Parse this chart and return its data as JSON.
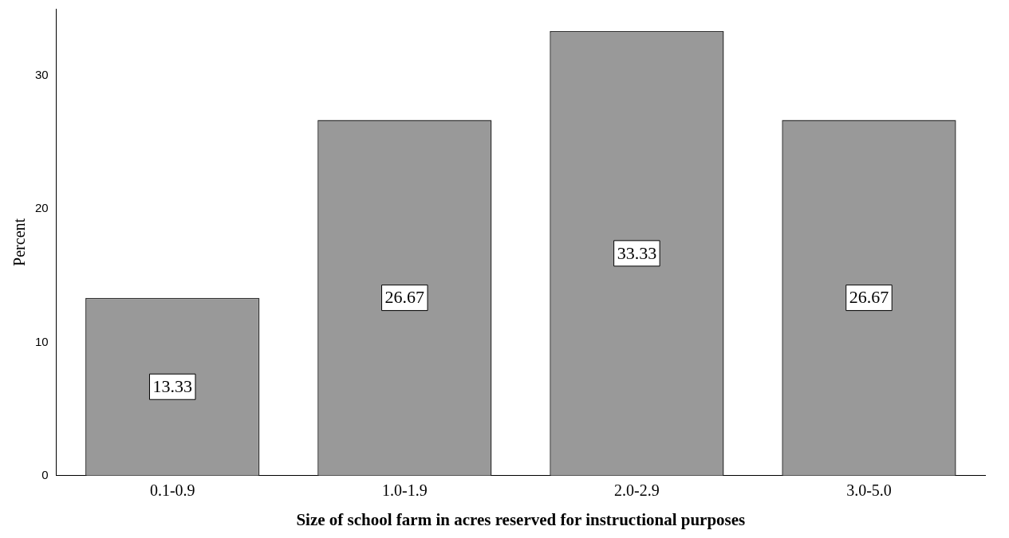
{
  "chart_data": {
    "type": "bar",
    "xlabel": "Size of school farm in acres reserved for instructional purposes",
    "ylabel": "Percent",
    "categories": [
      "0.1-0.9",
      "1.0-1.9",
      "2.0-2.9",
      "3.0-5.0"
    ],
    "values": [
      13.33,
      26.67,
      33.33,
      26.67
    ],
    "color": "#999999",
    "ylim": [
      0,
      35
    ],
    "yticks": [
      0,
      10,
      20,
      30
    ],
    "grid": false,
    "data_labels": true
  }
}
